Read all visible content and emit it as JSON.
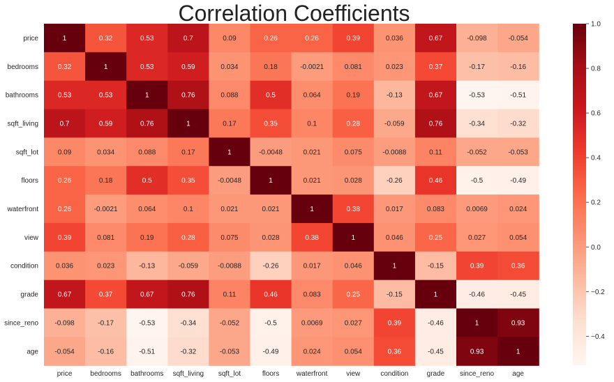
{
  "chart_data": {
    "type": "heatmap",
    "title": "Correlation Coefficients",
    "colormap": "Reds",
    "colormap_stops": [
      "#fff5f0",
      "#fee0d2",
      "#fcbba1",
      "#fc9272",
      "#fb6a4a",
      "#ef3b2c",
      "#cb181d",
      "#a50f15",
      "#67000d"
    ],
    "vmin": -0.53,
    "vmax": 1.0,
    "rows": [
      "price",
      "bedrooms",
      "bathrooms",
      "sqft_living",
      "sqft_lot",
      "floors",
      "waterfront",
      "view",
      "condition",
      "grade",
      "since_reno",
      "age"
    ],
    "columns": [
      "price",
      "bedrooms",
      "bathrooms",
      "sqft_living",
      "sqft_lot",
      "floors",
      "waterfront",
      "view",
      "condition",
      "grade",
      "since_reno",
      "age"
    ],
    "values": [
      [
        1,
        0.32,
        0.53,
        0.7,
        0.09,
        0.26,
        0.26,
        0.39,
        0.036,
        0.67,
        -0.098,
        -0.054
      ],
      [
        0.32,
        1,
        0.53,
        0.59,
        0.034,
        0.18,
        -0.0021,
        0.081,
        0.023,
        0.37,
        -0.17,
        -0.16
      ],
      [
        0.53,
        0.53,
        1,
        0.76,
        0.088,
        0.5,
        0.064,
        0.19,
        -0.13,
        0.67,
        -0.53,
        -0.51
      ],
      [
        0.7,
        0.59,
        0.76,
        1,
        0.17,
        0.35,
        0.1,
        0.28,
        -0.059,
        0.76,
        -0.34,
        -0.32
      ],
      [
        0.09,
        0.034,
        0.088,
        0.17,
        1,
        -0.0048,
        0.021,
        0.075,
        -0.0088,
        0.11,
        -0.052,
        -0.053
      ],
      [
        0.26,
        0.18,
        0.5,
        0.35,
        -0.0048,
        1,
        0.021,
        0.028,
        -0.26,
        0.46,
        -0.5,
        -0.49
      ],
      [
        0.26,
        -0.0021,
        0.064,
        0.1,
        0.021,
        0.021,
        1,
        0.38,
        0.017,
        0.083,
        0.0069,
        0.024
      ],
      [
        0.39,
        0.081,
        0.19,
        0.28,
        0.075,
        0.028,
        0.38,
        1,
        0.046,
        0.25,
        0.027,
        0.054
      ],
      [
        0.036,
        0.023,
        -0.13,
        -0.059,
        -0.0088,
        -0.26,
        0.017,
        0.046,
        1,
        -0.15,
        0.39,
        0.36
      ],
      [
        0.67,
        0.37,
        0.67,
        0.76,
        0.11,
        0.46,
        0.083,
        0.25,
        -0.15,
        1,
        -0.46,
        -0.45
      ],
      [
        -0.098,
        -0.17,
        -0.53,
        -0.34,
        -0.052,
        -0.5,
        0.0069,
        0.027,
        0.39,
        -0.46,
        1,
        0.93
      ],
      [
        -0.054,
        -0.16,
        -0.51,
        -0.32,
        -0.053,
        -0.49,
        0.024,
        0.054,
        0.36,
        -0.45,
        0.93,
        1
      ]
    ],
    "colorbar_ticks": [
      1.0,
      0.8,
      0.6,
      0.4,
      0.2,
      0.0,
      -0.2,
      -0.4
    ],
    "colorbar_tick_labels": [
      "1.0",
      "0.8",
      "0.6",
      "0.4",
      "0.2",
      "0.0",
      "−0.2",
      "−0.4"
    ]
  }
}
